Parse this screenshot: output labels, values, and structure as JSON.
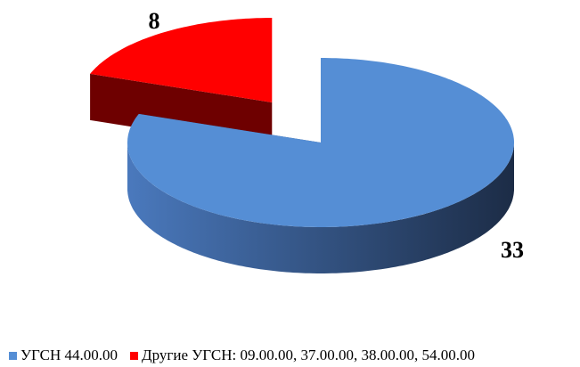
{
  "chart_data": {
    "type": "pie",
    "categories": [
      "УГСН 44.00.00",
      "Другие УГСН: 09.00.00, 37.00.00, 38.00.00, 54.00.00"
    ],
    "values": [
      33,
      8
    ],
    "colors": [
      "#558ed5",
      "#ff0000"
    ],
    "legend": "bottom"
  }
}
